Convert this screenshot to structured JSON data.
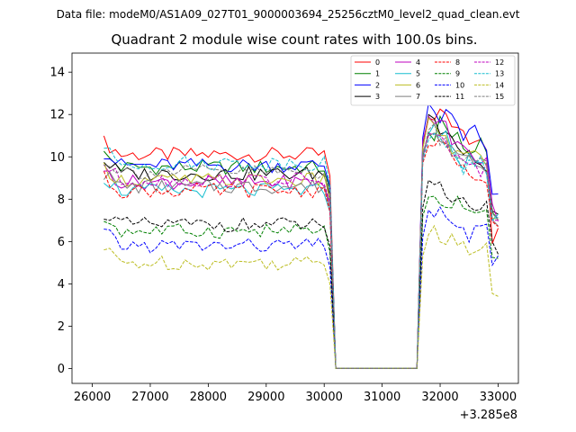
{
  "chart_data": {
    "type": "line",
    "suptitle": "Data file: modeM0/AS1A09_027T01_9000003694_25256cztM0_level2_quad_clean.evt",
    "title": "Quadrant 2 module wise count rates with 100.0s bins.",
    "xlabel": "",
    "ylabel": "",
    "offset_label": "+3.285e8",
    "xlim": [
      25650,
      33350
    ],
    "ylim": [
      -0.7,
      14.9
    ],
    "xticks": [
      26000,
      27000,
      28000,
      29000,
      30000,
      31000,
      32000,
      33000
    ],
    "yticks": [
      0,
      2,
      4,
      6,
      8,
      10,
      12,
      14
    ],
    "x": {
      "start": 26200,
      "step": 100,
      "count": 69
    },
    "gap": {
      "low_start_index": 40,
      "low_end_index": 54
    },
    "series": [
      {
        "name": "0",
        "color": "#ff0000",
        "dash": "solid",
        "level": 10.1,
        "postgap": [
          11.6,
          12.1,
          11.6,
          11.0,
          10.4,
          6.2
        ]
      },
      {
        "name": "1",
        "color": "#008000",
        "dash": "solid",
        "level": 9.5,
        "postgap": [
          11.2,
          11.6,
          10.8,
          10.2,
          10.6,
          7.0
        ]
      },
      {
        "name": "2",
        "color": "#0000ff",
        "dash": "solid",
        "level": 9.6,
        "postgap": [
          12.1,
          12.0,
          11.7,
          11.2,
          10.7,
          7.8
        ]
      },
      {
        "name": "3",
        "color": "#000000",
        "dash": "solid",
        "level": 9.2,
        "postgap": [
          11.7,
          11.4,
          10.6,
          10.0,
          9.6,
          7.1
        ]
      },
      {
        "name": "4",
        "color": "#bf00bf",
        "dash": "solid",
        "level": 8.8,
        "postgap": [
          11.9,
          11.3,
          10.5,
          10.1,
          10.0,
          7.4
        ]
      },
      {
        "name": "5",
        "color": "#17becf",
        "dash": "solid",
        "level": 8.4,
        "postgap": [
          11.3,
          10.9,
          10.2,
          9.7,
          9.3,
          7.2
        ]
      },
      {
        "name": "6",
        "color": "#bcbd22",
        "dash": "solid",
        "level": 8.9,
        "postgap": [
          11.6,
          11.1,
          10.4,
          10.0,
          9.8,
          7.3
        ]
      },
      {
        "name": "7",
        "color": "#7f7f7f",
        "dash": "solid",
        "level": 8.6,
        "postgap": [
          11.4,
          11.0,
          10.1,
          9.8,
          9.5,
          7.1
        ]
      },
      {
        "name": "8",
        "color": "#ff0000",
        "dash": "dashed",
        "level": 8.4,
        "postgap": [
          10.9,
          10.5,
          9.8,
          9.3,
          9.1,
          6.8
        ]
      },
      {
        "name": "9",
        "color": "#008000",
        "dash": "dashed",
        "level": 6.5,
        "postgap": [
          8.4,
          8.0,
          7.7,
          7.2,
          7.5,
          5.6
        ]
      },
      {
        "name": "10",
        "color": "#0000ff",
        "dash": "dashed",
        "level": 5.8,
        "postgap": [
          7.4,
          7.2,
          6.8,
          6.4,
          6.6,
          5.0
        ]
      },
      {
        "name": "11",
        "color": "#000000",
        "dash": "dashed",
        "level": 6.8,
        "postgap": [
          8.8,
          8.5,
          8.1,
          7.7,
          7.9,
          5.8
        ]
      },
      {
        "name": "12",
        "color": "#bf00bf",
        "dash": "dashed",
        "level": 8.9,
        "postgap": [
          11.1,
          10.6,
          10.0,
          9.6,
          9.4,
          7.0
        ]
      },
      {
        "name": "13",
        "color": "#17becf",
        "dash": "dashed",
        "level": 9.7,
        "postgap": [
          11.0,
          10.7,
          10.1,
          9.5,
          9.6,
          7.0
        ]
      },
      {
        "name": "14",
        "color": "#bcbd22",
        "dash": "dashed",
        "level": 5.0,
        "postgap": [
          6.5,
          6.3,
          6.0,
          5.6,
          5.9,
          3.8
        ]
      },
      {
        "name": "15",
        "color": "#7f7f7f",
        "dash": "dashed",
        "level": 9.3,
        "postgap": [
          11.2,
          10.8,
          10.3,
          9.8,
          9.9,
          7.2
        ]
      }
    ]
  }
}
